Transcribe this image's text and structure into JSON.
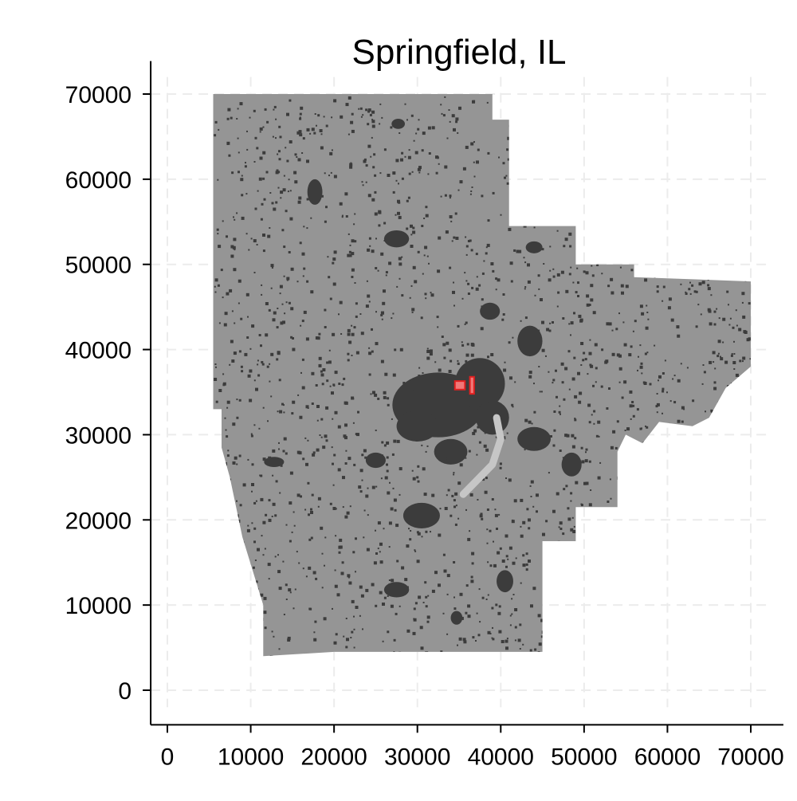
{
  "chart_data": {
    "type": "heatmap",
    "title": "Springfield, IL",
    "xlabel": "",
    "ylabel": "",
    "xlim": [
      -2000,
      72000
    ],
    "ylim": [
      -2000,
      72000
    ],
    "x_ticks": [
      0,
      10000,
      20000,
      30000,
      40000,
      50000,
      60000,
      70000
    ],
    "y_ticks": [
      0,
      10000,
      20000,
      30000,
      40000,
      50000,
      60000,
      70000
    ],
    "x_tick_labels": [
      "0",
      "10000",
      "20000",
      "30000",
      "40000",
      "50000",
      "60000",
      "70000"
    ],
    "y_tick_labels": [
      "0",
      "10000",
      "20000",
      "30000",
      "40000",
      "50000",
      "60000",
      "70000"
    ],
    "grid": true,
    "legend": "none",
    "colors": {
      "region": "#959595",
      "developed": "#3c3c3c",
      "water": "#c6c6c6",
      "highlight": "#f07878",
      "highlight_edge": "#e02020",
      "grid": "#ececec",
      "axis": "#000000"
    },
    "region_outline": [
      [
        5500,
        70000
      ],
      [
        39000,
        70000
      ],
      [
        39000,
        67000
      ],
      [
        41000,
        67000
      ],
      [
        41000,
        54500
      ],
      [
        49000,
        54500
      ],
      [
        49000,
        50000
      ],
      [
        56000,
        50000
      ],
      [
        56000,
        48500
      ],
      [
        70000,
        48000
      ],
      [
        70000,
        38000
      ],
      [
        67000,
        35500
      ],
      [
        65000,
        32000
      ],
      [
        63000,
        31000
      ],
      [
        59000,
        31500
      ],
      [
        57000,
        29000
      ],
      [
        55000,
        30000
      ],
      [
        54000,
        28000
      ],
      [
        54000,
        21500
      ],
      [
        49000,
        21500
      ],
      [
        49000,
        17500
      ],
      [
        45000,
        17500
      ],
      [
        45000,
        4500
      ],
      [
        20000,
        4500
      ],
      [
        11500,
        4000
      ],
      [
        11500,
        10000
      ],
      [
        9000,
        18000
      ],
      [
        7500,
        25000
      ],
      [
        6500,
        28500
      ],
      [
        6500,
        33000
      ],
      [
        5500,
        33000
      ]
    ],
    "developed_clusters": [
      {
        "x": 32500,
        "y": 33500,
        "rx": 5500,
        "ry": 3800
      },
      {
        "x": 37500,
        "y": 36000,
        "rx": 3000,
        "ry": 3000
      },
      {
        "x": 30000,
        "y": 31000,
        "rx": 2500,
        "ry": 1800
      },
      {
        "x": 39000,
        "y": 32000,
        "rx": 2000,
        "ry": 2000
      },
      {
        "x": 30500,
        "y": 20500,
        "rx": 2200,
        "ry": 1500
      },
      {
        "x": 27500,
        "y": 11800,
        "rx": 1500,
        "ry": 900
      },
      {
        "x": 17700,
        "y": 58500,
        "rx": 900,
        "ry": 1500
      },
      {
        "x": 27500,
        "y": 53000,
        "rx": 1500,
        "ry": 1000
      },
      {
        "x": 27700,
        "y": 66500,
        "rx": 800,
        "ry": 600
      },
      {
        "x": 43500,
        "y": 41000,
        "rx": 1500,
        "ry": 1800
      },
      {
        "x": 44000,
        "y": 29500,
        "rx": 2000,
        "ry": 1400
      },
      {
        "x": 38700,
        "y": 44500,
        "rx": 1200,
        "ry": 1000
      },
      {
        "x": 12800,
        "y": 26800,
        "rx": 1200,
        "ry": 600
      },
      {
        "x": 34700,
        "y": 8500,
        "rx": 700,
        "ry": 800
      },
      {
        "x": 40500,
        "y": 12800,
        "rx": 1000,
        "ry": 1300
      },
      {
        "x": 44000,
        "y": 52000,
        "rx": 1000,
        "ry": 700
      },
      {
        "x": 48500,
        "y": 26500,
        "rx": 1200,
        "ry": 1400
      },
      {
        "x": 34000,
        "y": 28000,
        "rx": 2000,
        "ry": 1500
      },
      {
        "x": 25000,
        "y": 27000,
        "rx": 1200,
        "ry": 900
      }
    ],
    "water_path": [
      [
        39500,
        32000
      ],
      [
        40000,
        29500
      ],
      [
        39000,
        26500
      ],
      [
        37000,
        24500
      ],
      [
        35500,
        23000
      ]
    ],
    "highlights": [
      {
        "x": 34500,
        "y": 35300,
        "w": 1200,
        "h": 1000
      },
      {
        "x": 36300,
        "y": 34800,
        "w": 500,
        "h": 2000
      }
    ]
  }
}
